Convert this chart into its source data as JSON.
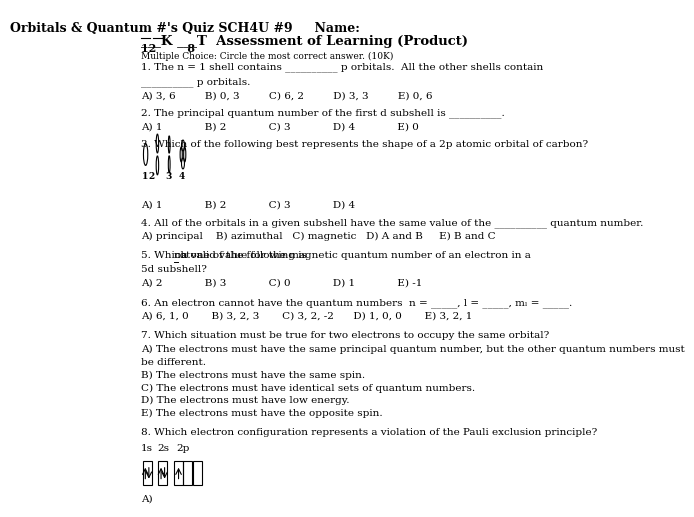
{
  "title": "Orbitals & Quantum #'s Quiz SCH4U #9     Name:",
  "subtitle": "___K ___T  Assessment of Learning (Product)",
  "scores": "12        8",
  "mc_instruction": "Multiple Choice: Circle the most correct answer. (10K)",
  "bg_color": "#ffffff",
  "text_color": "#000000",
  "font_size_title": 9,
  "font_size_body": 7.5
}
